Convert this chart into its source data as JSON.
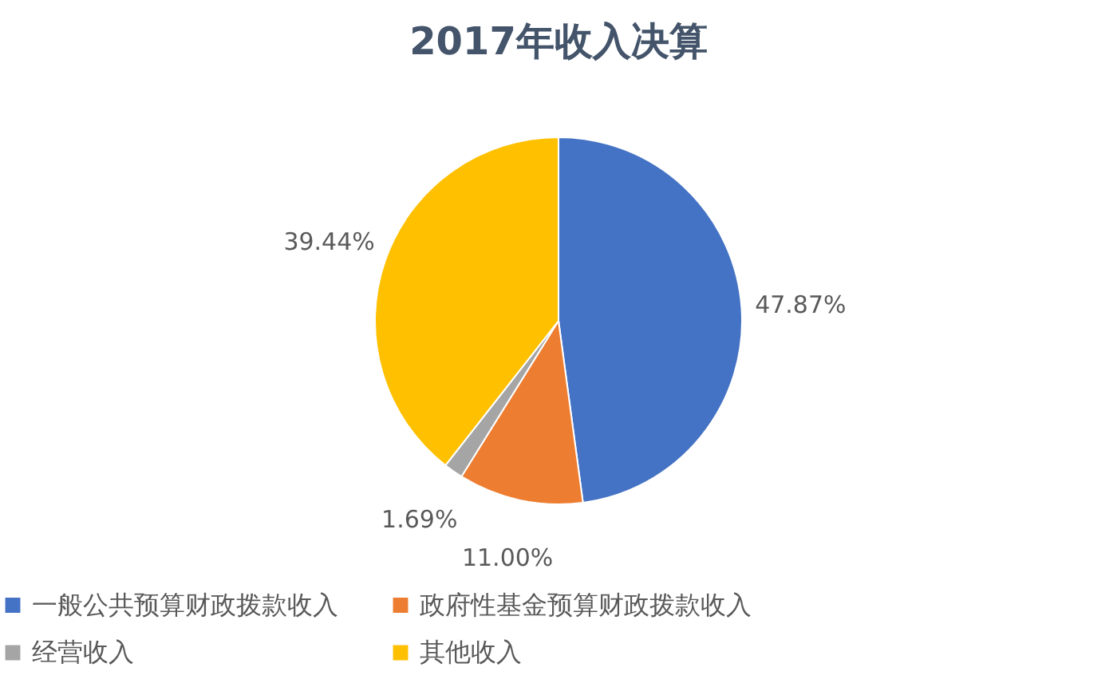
{
  "chart_data": {
    "type": "pie",
    "title": "2017年收入决算",
    "categories": [
      "一般公共预算财政拨款收入",
      "政府性基金预算财政拨款收入",
      "经营收入",
      "其他收入"
    ],
    "values": [
      47.87,
      11.0,
      1.69,
      39.44
    ],
    "colors": [
      "#4472c4",
      "#ed7d31",
      "#a5a5a5",
      "#ffc000"
    ],
    "value_labels": [
      "47.87%",
      "11.00%",
      "1.69%",
      "39.44%"
    ],
    "legend": "bottom"
  }
}
